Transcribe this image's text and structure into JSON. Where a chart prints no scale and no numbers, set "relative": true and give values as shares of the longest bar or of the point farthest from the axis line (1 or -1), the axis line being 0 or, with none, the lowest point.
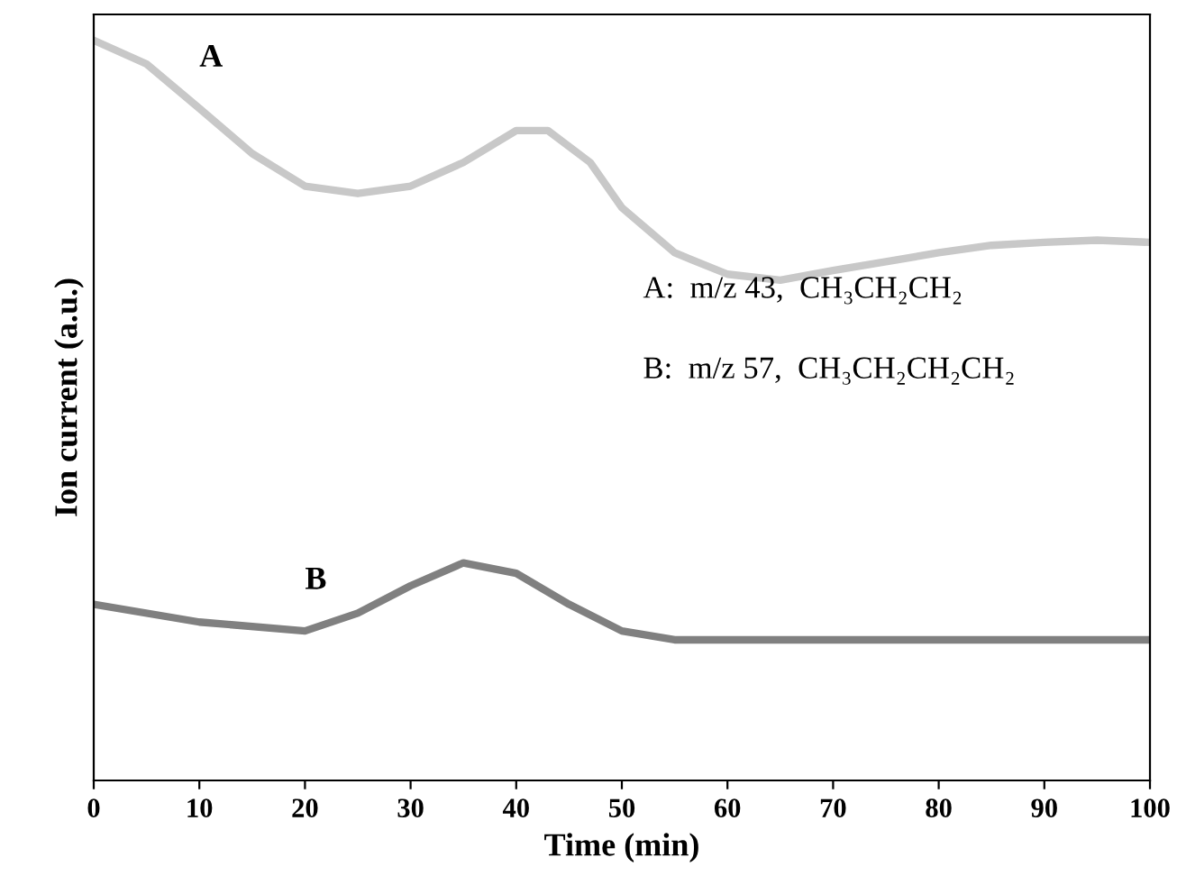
{
  "chart_data": {
    "type": "line",
    "relative": true,
    "xlabel": "Time (min)",
    "ylabel": "Ion current (a.u.)",
    "xlim": [
      0,
      100
    ],
    "xticks": [
      0,
      10,
      20,
      30,
      40,
      50,
      60,
      70,
      80,
      90,
      100
    ],
    "tick_labels": "x",
    "grid": false,
    "legend": false,
    "marker": "none",
    "line_style": "solid",
    "series": [
      {
        "name": "A",
        "color": "#c8c8c8",
        "x": [
          0,
          5,
          10,
          15,
          20,
          25,
          30,
          35,
          40,
          43,
          47,
          50,
          55,
          60,
          65,
          70,
          75,
          80,
          85,
          90,
          95,
          100
        ],
        "values": [
          1.0,
          0.968,
          0.908,
          0.847,
          0.803,
          0.793,
          0.803,
          0.835,
          0.878,
          0.878,
          0.835,
          0.774,
          0.713,
          0.684,
          0.676,
          0.689,
          0.701,
          0.713,
          0.723,
          0.727,
          0.73,
          0.727
        ]
      },
      {
        "name": "B",
        "color": "#808080",
        "x": [
          0,
          10,
          20,
          25,
          30,
          35,
          40,
          45,
          50,
          55,
          60,
          70,
          80,
          90,
          100
        ],
        "values": [
          0.238,
          0.214,
          0.202,
          0.226,
          0.263,
          0.294,
          0.28,
          0.238,
          0.202,
          0.19,
          0.19,
          0.19,
          0.19,
          0.19,
          0.19
        ]
      }
    ],
    "annotations": [
      "A:  m/z 43,  CH₃CH₂CH₂",
      "B:  m/z 57,  CH₃CH₂CH₂CH₂"
    ]
  }
}
